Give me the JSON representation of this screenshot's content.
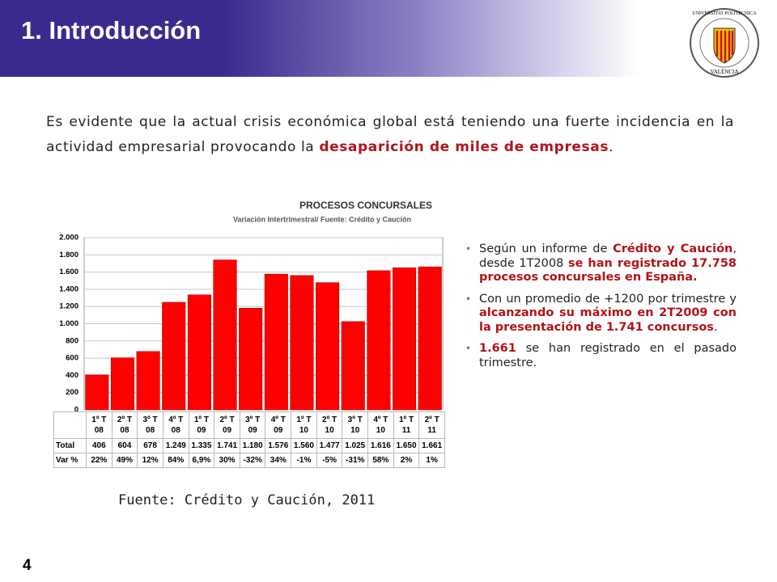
{
  "header": {
    "title": "1. Introducción",
    "logo_top": "UNIVERSITAT POLITÈCNICA",
    "logo_bottom": "VALÈNCIA"
  },
  "intro": {
    "segments": [
      {
        "text": "Es evidente que la actual crisis económica global está teniendo una fuerte incidencia en la actividad empresarial provocando la ",
        "emphasis": false
      },
      {
        "text": "desaparición de miles de empresas",
        "emphasis": true
      },
      {
        "text": ".",
        "emphasis": false
      }
    ]
  },
  "chart_data": {
    "type": "bar",
    "title": "PROCESOS CONCURSALES",
    "subtitle": "Variación Intertrimestral/ Fuente: Crédito y Caución",
    "categories": [
      "1º T\n08",
      "2º T\n08",
      "3º T\n08",
      "4º T\n08",
      "1º T\n09",
      "2º T\n09",
      "3º T\n09",
      "4º T\n09",
      "1º T\n10",
      "2º T\n10",
      "3º T\n10",
      "4º T\n10",
      "1º T\n11",
      "2º T\n11"
    ],
    "values": [
      406,
      604,
      678,
      1249,
      1335,
      1741,
      1180,
      1576,
      1560,
      1477,
      1025,
      1616,
      1650,
      1661
    ],
    "value_labels": [
      "406",
      "604",
      "678",
      "1.249",
      "1.335",
      "1.741",
      "1.180",
      "1.576",
      "1.560",
      "1.477",
      "1.025",
      "1.616",
      "1.650",
      "1.661"
    ],
    "row_labels": [
      "Total",
      "Var %"
    ],
    "var_labels": [
      "22%",
      "49%",
      "12%",
      "84%",
      "6,9%",
      "30%",
      "-32%",
      "34%",
      "-1%",
      "-5%",
      "-31%",
      "58%",
      "2%",
      "1%"
    ],
    "color": "#ff0000",
    "ylim": [
      0,
      2000
    ],
    "yticks": [
      0,
      200,
      400,
      600,
      800,
      {
        "value": 1000,
        "label": "1.000"
      },
      {
        "value": 1200,
        "label": "1.200"
      },
      {
        "value": 1400,
        "label": "1.400"
      },
      {
        "value": 1600,
        "label": "1.600"
      },
      {
        "value": 1800,
        "label": "1.800"
      },
      {
        "value": 2000,
        "label": "2.000"
      }
    ],
    "grid": true
  },
  "source": "Fuente: Crédito y Caución, 2011",
  "bullets": [
    {
      "segments": [
        {
          "text": "Según un informe de ",
          "emphasis": false
        },
        {
          "text": "Crédito y Caución",
          "emphasis": true
        },
        {
          "text": ", desde 1T2008 ",
          "emphasis": false
        },
        {
          "text": "se han registrado 17.758 procesos concursales en España.",
          "emphasis": true
        }
      ]
    },
    {
      "segments": [
        {
          "text": "Con un promedio de +1200 por trimestre y ",
          "emphasis": false
        },
        {
          "text": "alcanzando su máximo en 2T2009 con la presentación de 1.741 concursos",
          "emphasis": true
        },
        {
          "text": ".",
          "emphasis": false
        }
      ]
    },
    {
      "segments": [
        {
          "text": "1.661",
          "emphasis": true
        },
        {
          "text": " se han registrado en el pasado trimestre.",
          "emphasis": false
        }
      ]
    }
  ],
  "page_number": "4"
}
